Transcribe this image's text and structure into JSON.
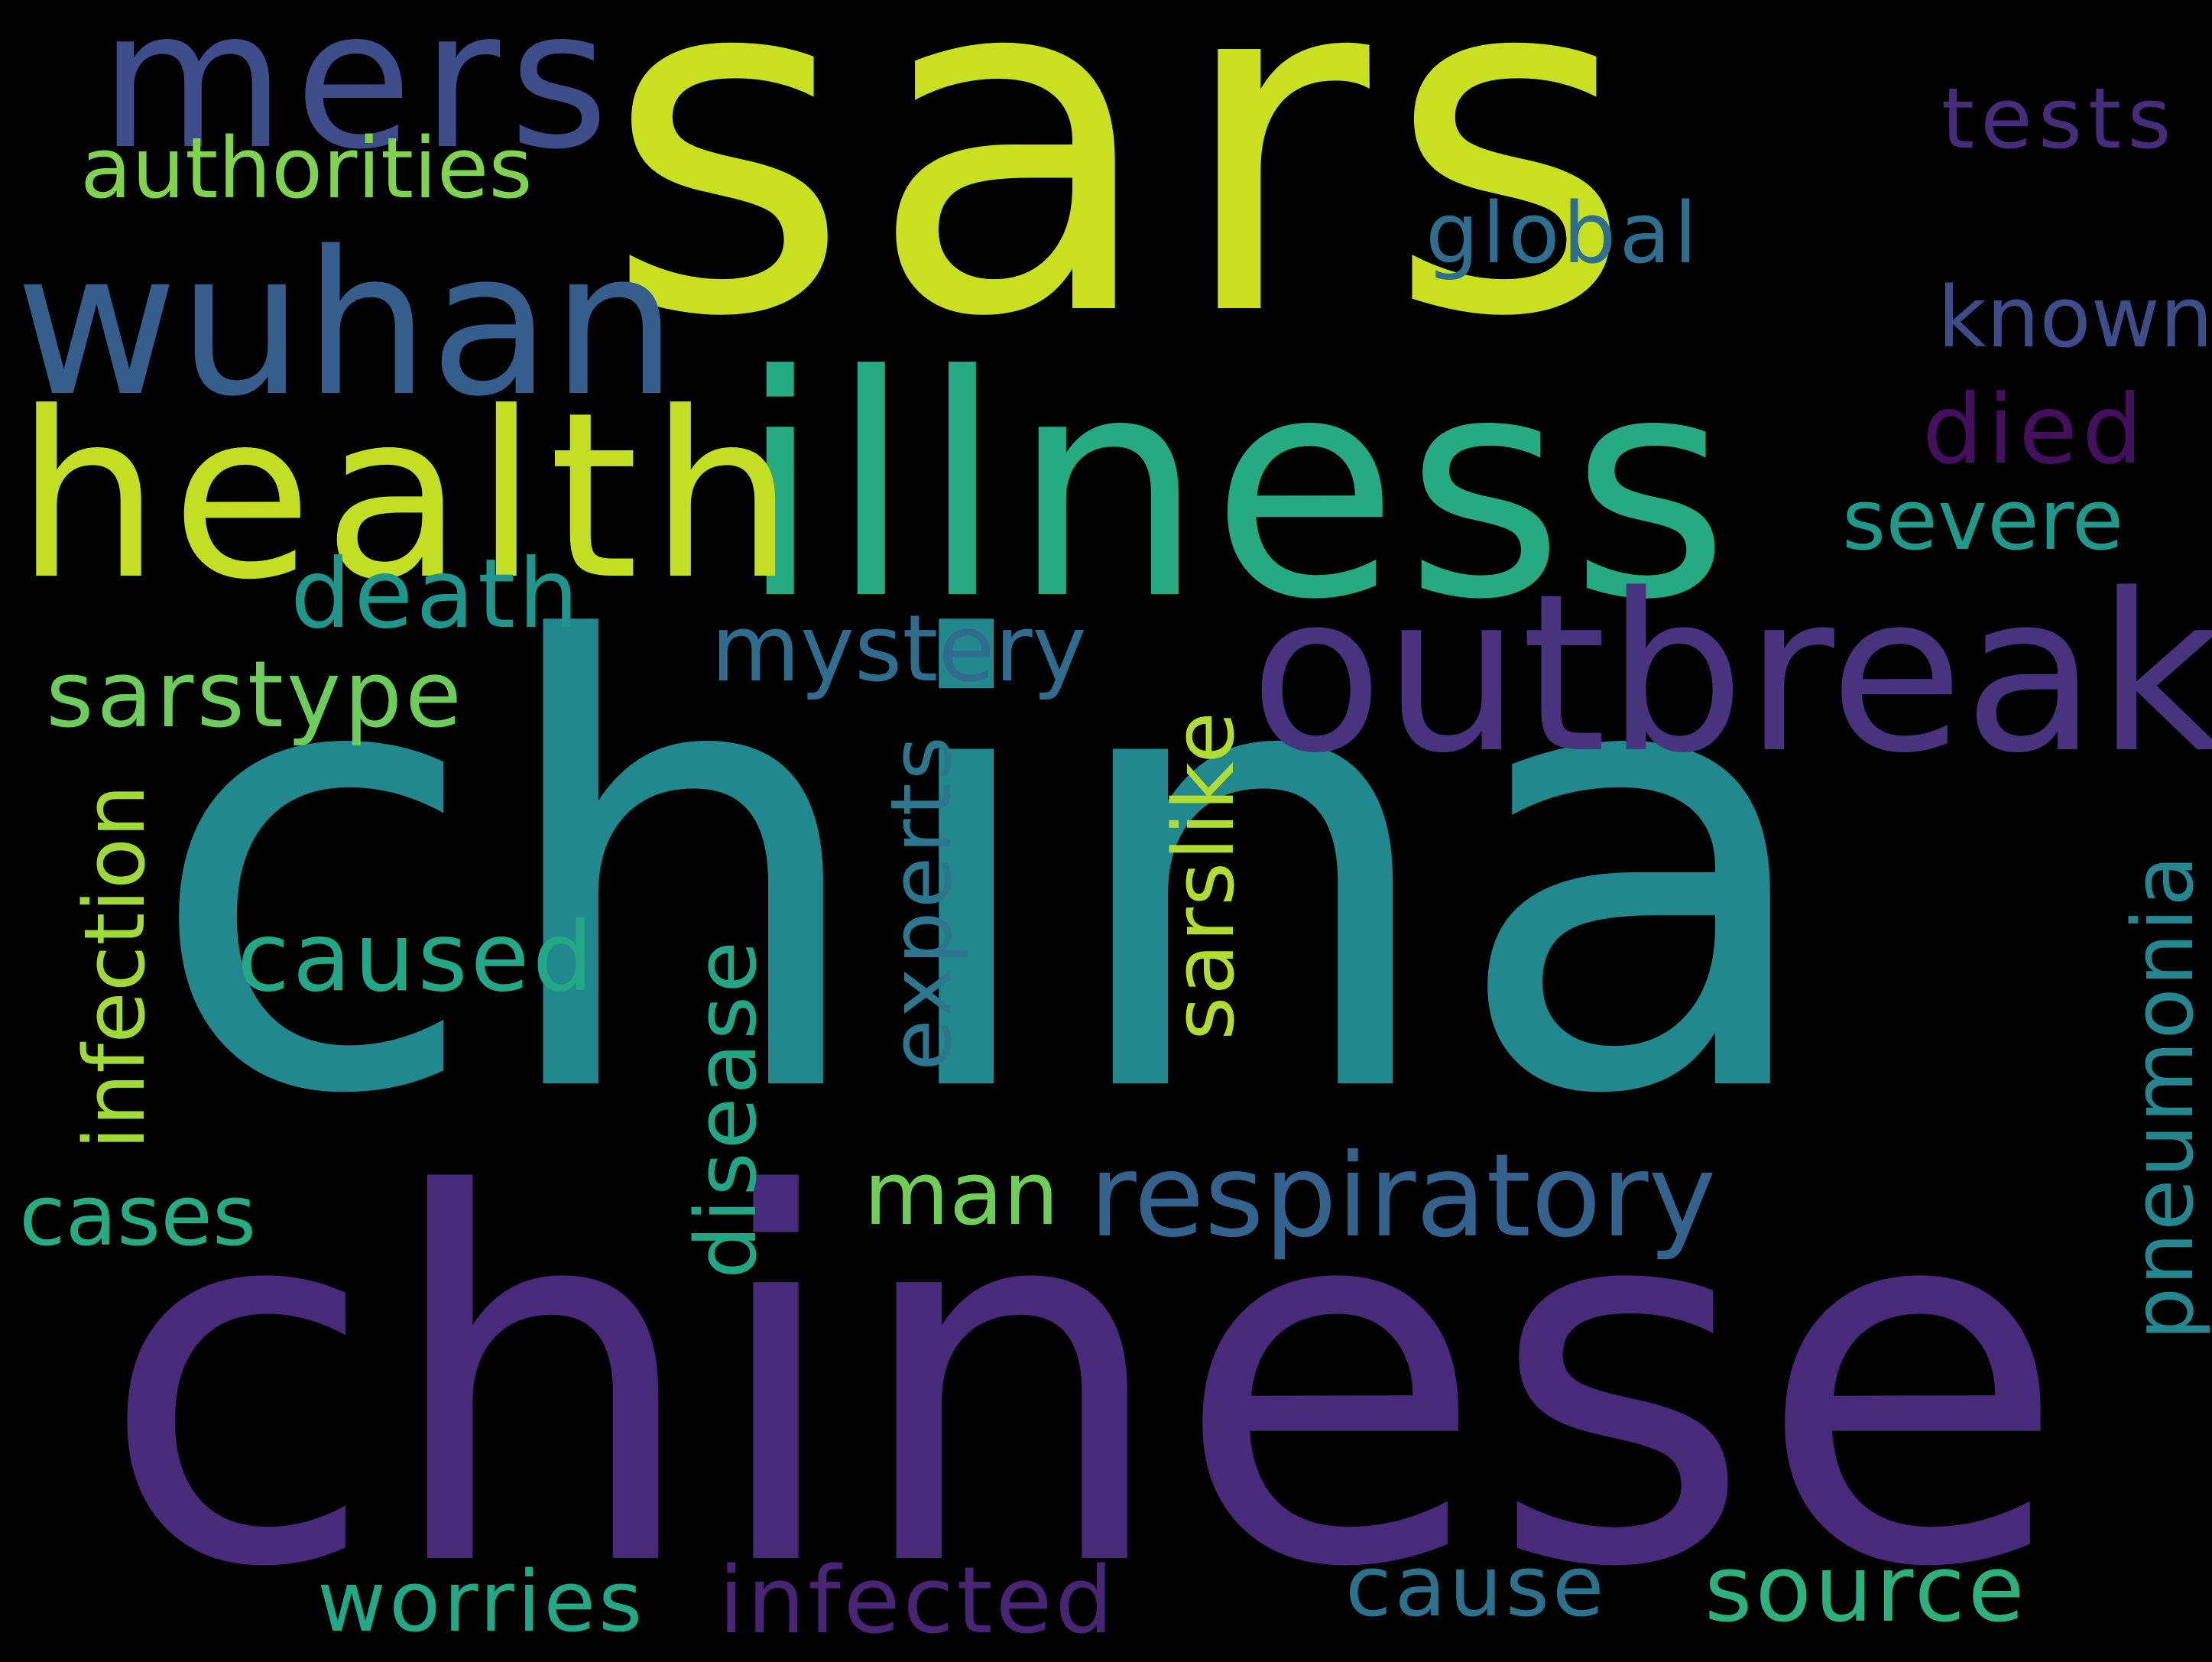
{
  "background": "#000000",
  "words": [
    {
      "text": "sars",
      "color": "#c8e01f"
    },
    {
      "text": "china",
      "color": "#21898d"
    },
    {
      "text": "chinese",
      "color": "#472a79"
    },
    {
      "text": "illness",
      "color": "#25aa82"
    },
    {
      "text": "health",
      "color": "#c2df23"
    },
    {
      "text": "outbreak",
      "color": "#47337e"
    },
    {
      "text": "wuhan",
      "color": "#355e8d"
    },
    {
      "text": "mers",
      "color": "#3d4e8a"
    },
    {
      "text": "respiratory",
      "color": "#33628d"
    },
    {
      "text": "authorities",
      "color": "#7fd34e"
    },
    {
      "text": "global",
      "color": "#2e6e8e"
    },
    {
      "text": "tests",
      "color": "#462d7c"
    },
    {
      "text": "known",
      "color": "#3e4c8a"
    },
    {
      "text": "died",
      "color": "#440f5d"
    },
    {
      "text": "severe",
      "color": "#1f9a8a"
    },
    {
      "text": "death",
      "color": "#1f968b"
    },
    {
      "text": "mystery",
      "color": "#2f6c8e"
    },
    {
      "text": "sarstype",
      "color": "#6ccd5a"
    },
    {
      "text": "caused",
      "color": "#22a884"
    },
    {
      "text": "man",
      "color": "#6ece58"
    },
    {
      "text": "cases",
      "color": "#25ac82"
    },
    {
      "text": "worries",
      "color": "#22a884"
    },
    {
      "text": "infected",
      "color": "#482475"
    },
    {
      "text": "cause",
      "color": "#2c718e"
    },
    {
      "text": "source",
      "color": "#2cb17e"
    },
    {
      "text": "infection",
      "color": "#a0da39"
    },
    {
      "text": "disease",
      "color": "#22a785"
    },
    {
      "text": "experts",
      "color": "#2a778e"
    },
    {
      "text": "sarslike",
      "color": "#b0dd2f"
    },
    {
      "text": "pneumonia",
      "color": "#24868e"
    }
  ]
}
